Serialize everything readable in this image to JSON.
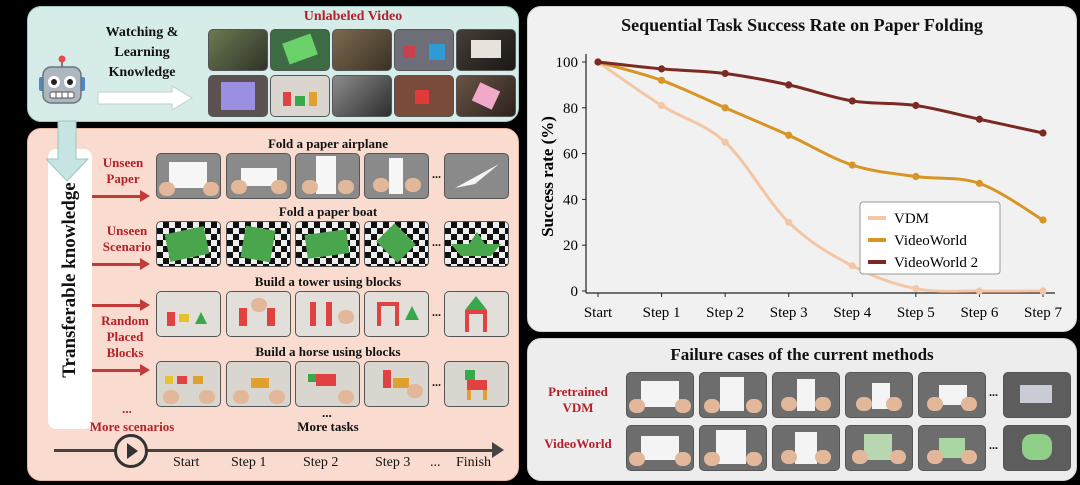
{
  "watch": {
    "title": "Watching & Learning Knowledge",
    "video_label": "Unlabeled Video",
    "robot_icon": "robot-face-icon"
  },
  "transfer": {
    "vertical_label": "Transferable knowledge",
    "rows": [
      {
        "scenario": "Unseen Paper",
        "task": "Fold a paper airplane"
      },
      {
        "scenario": "Unseen Scenario",
        "task": "Fold a paper boat"
      },
      {
        "scenario": "Random Placed Blocks",
        "task": "Build a tower using blocks"
      },
      {
        "scenario": "",
        "task": "Build a horse using blocks"
      }
    ],
    "more_dots": "...",
    "more_scenarios": "More scenarios",
    "more_tasks": "More tasks",
    "ellipsis": "...",
    "timeline": [
      "Start",
      "Step 1",
      "Step 2",
      "Step 3",
      "...",
      "Finish"
    ]
  },
  "chart_data": {
    "type": "line",
    "title": "Sequential Task Success Rate on Paper Folding",
    "xlabel": "",
    "ylabel": "Success rate (%)",
    "categories": [
      "Start",
      "Step 1",
      "Step 2",
      "Step 3",
      "Step 4",
      "Step 5",
      "Step 6",
      "Step 7"
    ],
    "ylim": [
      0,
      100
    ],
    "yticks": [
      0,
      20,
      40,
      60,
      80,
      100
    ],
    "series": [
      {
        "name": "VDM",
        "color": "#f3c6a6",
        "values": [
          100,
          81,
          65,
          30,
          11,
          1,
          0,
          0
        ]
      },
      {
        "name": "VideoWorld",
        "color": "#d69524",
        "values": [
          100,
          92,
          80,
          68,
          55,
          50,
          47,
          31
        ]
      },
      {
        "name": "VideoWorld 2",
        "color": "#7a2a22",
        "values": [
          100,
          97,
          95,
          90,
          83,
          81,
          75,
          69
        ]
      }
    ],
    "legend": "center-right",
    "grid": false
  },
  "failure": {
    "title": "Failure cases of the current methods",
    "rows": [
      {
        "label": "Pretrained VDM"
      },
      {
        "label": "VideoWorld"
      }
    ],
    "ellipsis": "..."
  }
}
